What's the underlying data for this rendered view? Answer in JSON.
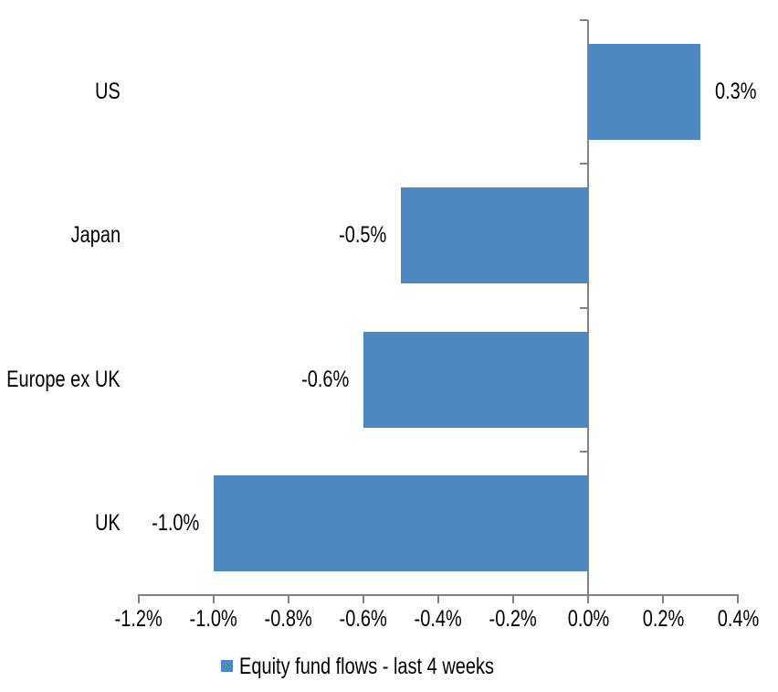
{
  "chart_data": {
    "type": "bar",
    "orientation": "horizontal",
    "title": "",
    "categories": [
      "US",
      "Japan",
      "Europe ex UK",
      "UK"
    ],
    "values": [
      0.3,
      -0.5,
      -0.6,
      -1.0
    ],
    "data_labels": [
      "0.3%",
      "-0.5%",
      "-0.6%",
      "-1.0%"
    ],
    "series": [
      {
        "name": "Equity fund flows - last 4 weeks",
        "values": [
          0.3,
          -0.5,
          -0.6,
          -1.0
        ]
      }
    ],
    "xlabel": "",
    "ylabel": "",
    "xlim": [
      -1.2,
      0.4
    ],
    "x_tick_values": [
      -1.2,
      -1.0,
      -0.8,
      -0.6,
      -0.4,
      -0.2,
      0.0,
      0.2,
      0.4
    ],
    "x_tick_labels": [
      "-1.2%",
      "-1.0%",
      "-0.8%",
      "-0.6%",
      "-0.4%",
      "-0.2%",
      "0.0%",
      "0.2%",
      "0.4%"
    ],
    "grid": false,
    "legend_position": "bottom",
    "bar_gap_ratio": 0.5,
    "colors": {
      "bar": "#4d88c1",
      "axis": "#828282",
      "text": "#000000",
      "background": "#ffffff"
    }
  },
  "legend": {
    "label": "Equity fund flows - last 4 weeks"
  }
}
